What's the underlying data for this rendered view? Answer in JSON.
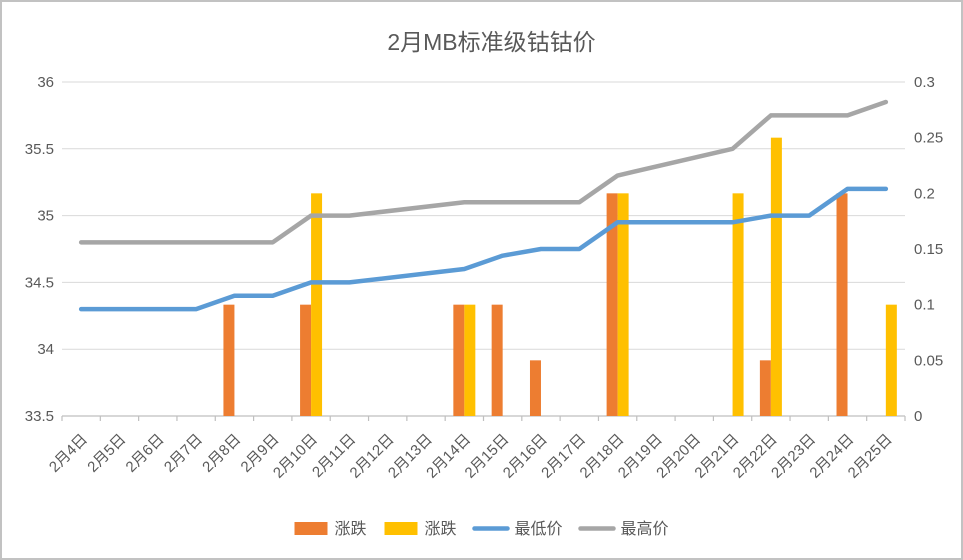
{
  "frame": {
    "background": "#ffffff",
    "border_color": "#c2c2c2"
  },
  "chart_data": {
    "type": "combo-bar-line",
    "title": "2月MB标准级钴钴价",
    "title_color": "#595959",
    "categories": [
      "2月4日",
      "2月5日",
      "2月6日",
      "2月7日",
      "2月8日",
      "2月9日",
      "2月10日",
      "2月11日",
      "2月12日",
      "2月13日",
      "2月14日",
      "2月15日",
      "2月16日",
      "2月17日",
      "2月18日",
      "2月19日",
      "2月20日",
      "2月21日",
      "2月22日",
      "2月23日",
      "2月24日",
      "2月25日"
    ],
    "series": [
      {
        "name": "涨跌",
        "kind": "bar",
        "axis": "right",
        "color": "#ED7D31",
        "values": [
          null,
          null,
          null,
          null,
          0.1,
          null,
          0.1,
          null,
          null,
          null,
          0.1,
          0.1,
          0.05,
          null,
          0.2,
          null,
          null,
          null,
          0.05,
          null,
          0.2,
          null
        ]
      },
      {
        "name": "涨跌",
        "kind": "bar",
        "axis": "right",
        "color": "#FFC000",
        "values": [
          null,
          null,
          null,
          null,
          null,
          null,
          0.2,
          null,
          null,
          null,
          0.1,
          null,
          null,
          null,
          0.2,
          null,
          null,
          0.2,
          0.25,
          null,
          null,
          0.1
        ]
      },
      {
        "name": "最低价",
        "kind": "line",
        "axis": "left",
        "color": "#5B9BD5",
        "values": [
          34.3,
          null,
          null,
          34.3,
          34.4,
          34.4,
          34.5,
          34.5,
          null,
          null,
          34.6,
          34.7,
          34.75,
          34.75,
          34.95,
          null,
          null,
          34.95,
          35.0,
          35.0,
          35.2,
          35.2
        ]
      },
      {
        "name": "最高价",
        "kind": "line",
        "axis": "left",
        "color": "#A6A6A6",
        "values": [
          34.8,
          null,
          null,
          34.8,
          34.8,
          34.8,
          35.0,
          35.0,
          null,
          null,
          35.1,
          35.1,
          35.1,
          35.1,
          35.3,
          null,
          null,
          35.5,
          35.75,
          35.75,
          35.75,
          35.85
        ]
      }
    ],
    "left_axis": {
      "min": 33.5,
      "max": 36,
      "step": 0.5,
      "tick_labels": [
        "36",
        "35.5",
        "35",
        "34.5",
        "34",
        "33.5"
      ]
    },
    "right_axis": {
      "min": 0,
      "max": 0.3,
      "step": 0.05,
      "tick_labels": [
        "0.3",
        "0.25",
        "0.2",
        "0.15",
        "0.1",
        "0.05",
        "0"
      ]
    },
    "legend_position": "bottom",
    "grid": true,
    "grid_color": "#d9d9d9",
    "axis_line_color": "#bfbfbf",
    "label_color": "#595959"
  }
}
